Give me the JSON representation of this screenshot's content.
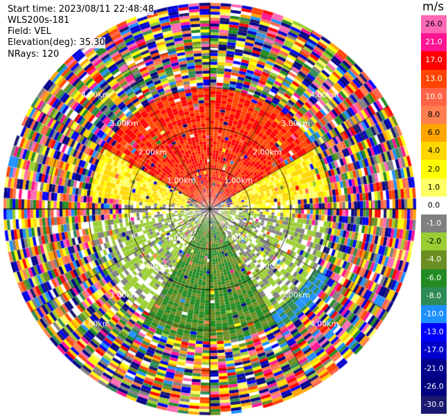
{
  "header": {
    "start_time": "Start time: 2023/08/11 22:48:48",
    "instrument": "WLS200s-181",
    "field": "Field: VEL",
    "elevation": "Elevation(deg): 35.30",
    "nrays": "NRays: 120"
  },
  "colorbar": {
    "unit": "m/s",
    "ticks": [
      "26.0",
      "21.0",
      "17.0",
      "13.0",
      "10.0",
      "8.0",
      "6.0",
      "4.0",
      "2.0",
      "1.0",
      "0.0",
      "-1.0",
      "-2.0",
      "-4.0",
      "-6.0",
      "-8.0",
      "-10.0",
      "-13.0",
      "-17.0",
      "-21.0",
      "-26.0",
      "-30.0"
    ],
    "colors": [
      "#ff69b4",
      "#ff1493",
      "#ff0000",
      "#ff4500",
      "#ff6347",
      "#ff7f50",
      "#ffa500",
      "#ffd700",
      "#ffff00",
      "#ffff66",
      "#ffffff",
      "#808080",
      "#9acd32",
      "#6b8e23",
      "#228b22",
      "#2e8b57",
      "#1e90ff",
      "#0000ff",
      "#0000cd",
      "#00008b",
      "#000080",
      "#191970"
    ]
  },
  "chart_data": {
    "type": "heatmap",
    "title": "Field: VEL",
    "projection": "polar PPI scan",
    "n_rays": 120,
    "elevation_deg": 35.3,
    "range_ring_labels": [
      "1.00km",
      "2.00km",
      "3.00km",
      "4.00km"
    ],
    "range_rings_km": [
      1,
      2,
      3,
      4
    ],
    "max_range_km": 5.1,
    "spoke_step_deg": 30,
    "value_unit": "m/s",
    "value_range": [
      -30,
      26
    ],
    "sectors": [
      {
        "azimuth_deg": [
          300,
          60
        ],
        "range_km": [
          0.1,
          3.0
        ],
        "velocity_ms": 13,
        "note": "north"
      },
      {
        "azimuth_deg": [
          60,
          85
        ],
        "range_km": [
          0.6,
          3.0
        ],
        "velocity_ms": 2
      },
      {
        "azimuth_deg": [
          275,
          300
        ],
        "range_km": [
          0.6,
          3.0
        ],
        "velocity_ms": 2
      },
      {
        "azimuth_deg": [
          85,
          95
        ],
        "range_km": [
          0.2,
          2.2
        ],
        "velocity_ms": 0
      },
      {
        "azimuth_deg": [
          265,
          275
        ],
        "range_km": [
          0.2,
          2.2
        ],
        "velocity_ms": 0
      },
      {
        "azimuth_deg": [
          95,
          150
        ],
        "range_km": [
          0.2,
          3.0
        ],
        "velocity_ms": -2
      },
      {
        "azimuth_deg": [
          210,
          265
        ],
        "range_km": [
          0.2,
          3.0
        ],
        "velocity_ms": -2
      },
      {
        "azimuth_deg": [
          150,
          210
        ],
        "range_km": [
          0.2,
          3.3
        ],
        "velocity_ms": -6,
        "note": "south"
      },
      {
        "azimuth_deg": [
          120,
          150
        ],
        "range_km": [
          2.6,
          3.4
        ],
        "velocity_ms": -10
      },
      {
        "azimuth_deg": [
          0,
          360
        ],
        "range_km": [
          3.2,
          5.1
        ],
        "velocity_ms": null,
        "note": "noise / mixed values"
      }
    ]
  }
}
